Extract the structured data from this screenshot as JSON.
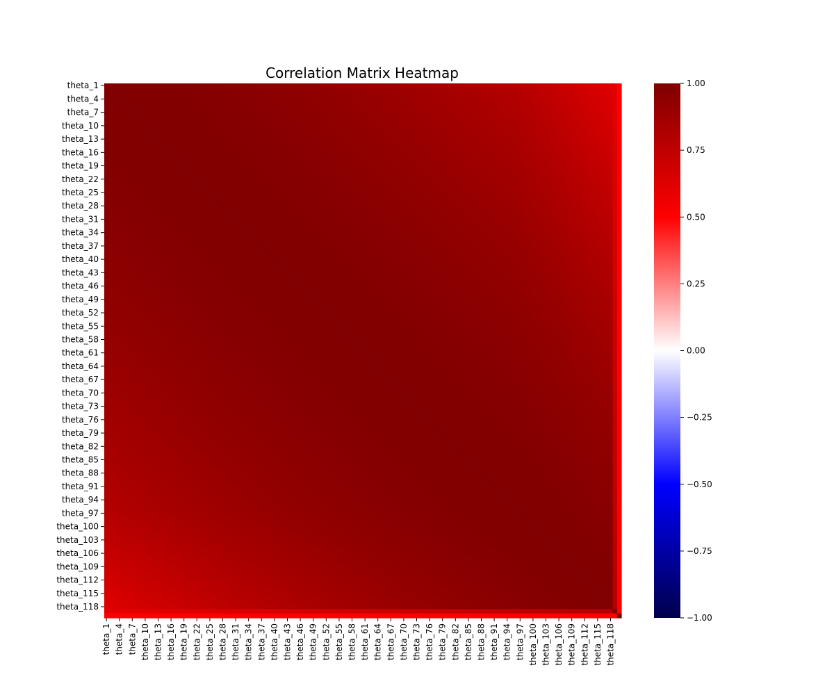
{
  "chart_data": {
    "type": "heatmap",
    "title": "Correlation Matrix Heatmap",
    "xlabel": "",
    "ylabel": "",
    "variable_count": 120,
    "variable_prefix": "theta_",
    "tick_labels": [
      "theta_1",
      "theta_4",
      "theta_7",
      "theta_10",
      "theta_13",
      "theta_16",
      "theta_19",
      "theta_22",
      "theta_25",
      "theta_28",
      "theta_31",
      "theta_34",
      "theta_37",
      "theta_40",
      "theta_43",
      "theta_46",
      "theta_49",
      "theta_52",
      "theta_55",
      "theta_58",
      "theta_61",
      "theta_64",
      "theta_67",
      "theta_70",
      "theta_73",
      "theta_76",
      "theta_79",
      "theta_82",
      "theta_85",
      "theta_88",
      "theta_91",
      "theta_94",
      "theta_97",
      "theta_100",
      "theta_103",
      "theta_106",
      "theta_109",
      "theta_112",
      "theta_115",
      "theta_118"
    ],
    "tick_step": 3,
    "value_range": [
      -1.0,
      1.0
    ],
    "colormap": "seismic",
    "colormap_stops": [
      {
        "value": -1.0,
        "color": "#00004c"
      },
      {
        "value": -0.5,
        "color": "#0000ff"
      },
      {
        "value": 0.0,
        "color": "#ffffff"
      },
      {
        "value": 0.5,
        "color": "#ff0000"
      },
      {
        "value": 1.0,
        "color": "#7f0000"
      }
    ],
    "colorbar_ticks": [
      {
        "value": 1.0,
        "label": "1.00"
      },
      {
        "value": 0.75,
        "label": "0.75"
      },
      {
        "value": 0.5,
        "label": "0.50"
      },
      {
        "value": 0.25,
        "label": "0.25"
      },
      {
        "value": 0.0,
        "label": "0.00"
      },
      {
        "value": -0.25,
        "label": "−0.25"
      },
      {
        "value": -0.5,
        "label": "−0.50"
      },
      {
        "value": -0.75,
        "label": "−0.75"
      },
      {
        "value": -1.0,
        "label": "−1.00"
      }
    ],
    "correlation_summary": {
      "min_correlation": 0.5,
      "diagonal": 1.0,
      "near_diagonal": 0.99,
      "theta_1_vs_theta_118": 0.72,
      "theta_1_vs_theta_119": 0.6,
      "theta_1_vs_theta_120": 0.5
    },
    "grid": false,
    "legend": "colorbar-right"
  }
}
